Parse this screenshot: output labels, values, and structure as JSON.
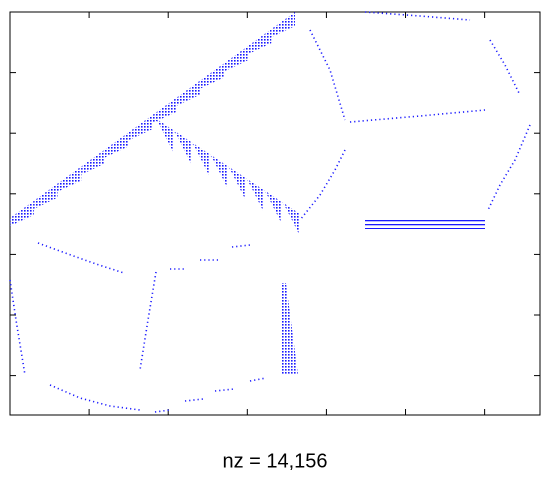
{
  "chart_data": {
    "type": "spy",
    "xlabel": "nz = 14,156"
  }
}
